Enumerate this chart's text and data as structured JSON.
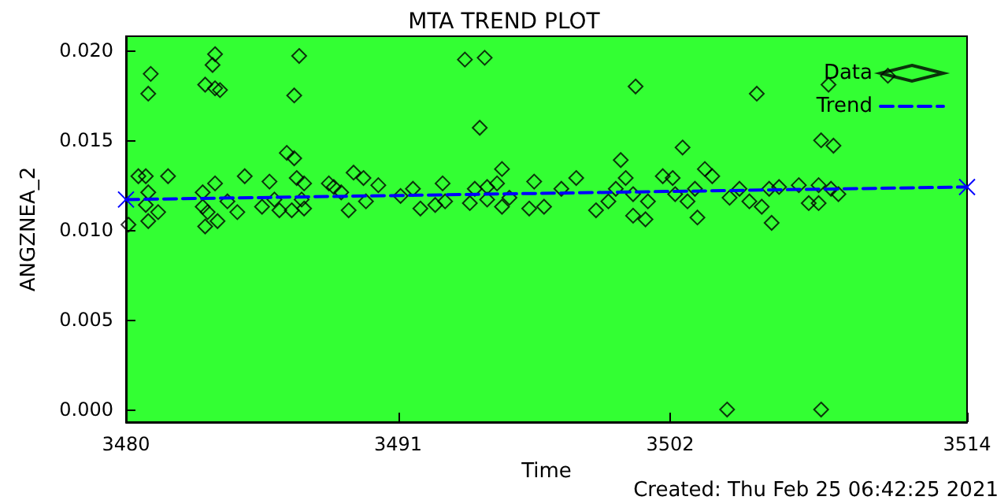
{
  "chart_data": {
    "type": "scatter",
    "title": "MTA TREND PLOT",
    "xlabel": "Time",
    "ylabel": "ANGZNEA_2",
    "annotations": [
      "Created: Thu Feb 25 06:42:25 2021"
    ],
    "xlim": [
      3480,
      3514
    ],
    "xticks": [
      3480,
      3491,
      3502,
      3514
    ],
    "ylim": [
      -0.0007,
      0.0208
    ],
    "yticks": [
      {
        "value": 0,
        "label": "0.000"
      },
      {
        "value": 0.005,
        "label": "0.005"
      },
      {
        "value": 0.01,
        "label": "0.010"
      },
      {
        "value": 0.015,
        "label": "0.015"
      },
      {
        "value": 0.02,
        "label": "0.020"
      }
    ],
    "grid": false,
    "legend": "top right",
    "series": [
      {
        "name": "Data",
        "color": "#000000",
        "marker": "diamond",
        "x": [
          3483.6,
          3483.5,
          3481.0,
          3480.9,
          3483.2,
          3483.6,
          3483.8,
          3487.0,
          3486.8,
          3486.5,
          3486.8,
          3480.5,
          3480.8,
          3481.7,
          3480.9,
          3480.8,
          3481.3,
          3480.9,
          3480.1,
          3483.1,
          3483.6,
          3483.1,
          3483.3,
          3483.2,
          3483.7,
          3484.1,
          3484.5,
          3484.8,
          3485.8,
          3485.5,
          3486.0,
          3486.2,
          3486.7,
          3486.9,
          3487.2,
          3487.1,
          3487.2,
          3488.2,
          3488.4,
          3488.7,
          3489.2,
          3489.6,
          3490.2,
          3489.0,
          3489.7,
          3491.1,
          3493.7,
          3494.5,
          3494.3,
          3500.6,
          3495.2,
          3492.8,
          3491.6,
          3491.9,
          3492.5,
          3492.9,
          3493.9,
          3494.1,
          3494.6,
          3495.0,
          3494.6,
          3495.2,
          3495.5,
          3496.5,
          3496.3,
          3496.9,
          3497.6,
          3498.2,
          3499.0,
          3499.5,
          3500.0,
          3500.2,
          3499.8,
          3500.5,
          3500.5,
          3501.0,
          3501.1,
          3501.7,
          3502.1,
          3502.2,
          3502.5,
          3503.4,
          3503.7,
          3503.0,
          3502.7,
          3503.1,
          3505.5,
          3508.4,
          3510.8,
          3508.1,
          3508.6,
          3504.8,
          3504.4,
          3505.2,
          3505.7,
          3506.0,
          3506.4,
          3506.1,
          3507.2,
          3508.0,
          3507.6,
          3508.0,
          3508.5,
          3508.8,
          3504.3,
          3508.1
        ],
        "values": [
          0.0198,
          0.0192,
          0.0187,
          0.0176,
          0.0181,
          0.0179,
          0.0178,
          0.0197,
          0.0175,
          0.0143,
          0.014,
          0.013,
          0.013,
          0.013,
          0.0121,
          0.0114,
          0.011,
          0.0105,
          0.0103,
          0.0121,
          0.0126,
          0.0113,
          0.011,
          0.0102,
          0.0105,
          0.0116,
          0.011,
          0.013,
          0.0127,
          0.0113,
          0.0117,
          0.0111,
          0.0111,
          0.0129,
          0.0126,
          0.0117,
          0.0112,
          0.0126,
          0.0124,
          0.0121,
          0.0132,
          0.0129,
          0.0125,
          0.0111,
          0.0116,
          0.0119,
          0.0195,
          0.0196,
          0.0157,
          0.018,
          0.0134,
          0.0126,
          0.0123,
          0.0112,
          0.0114,
          0.0116,
          0.0115,
          0.0123,
          0.0124,
          0.0126,
          0.0117,
          0.0113,
          0.0118,
          0.0127,
          0.0112,
          0.0113,
          0.0123,
          0.0129,
          0.0111,
          0.0116,
          0.0139,
          0.0129,
          0.0123,
          0.012,
          0.0108,
          0.0106,
          0.0116,
          0.013,
          0.0129,
          0.012,
          0.0146,
          0.0134,
          0.013,
          0.0123,
          0.0116,
          0.0107,
          0.0176,
          0.0181,
          0.0186,
          0.015,
          0.0147,
          0.0123,
          0.0118,
          0.0116,
          0.0113,
          0.0123,
          0.0124,
          0.0104,
          0.0125,
          0.0125,
          0.0115,
          0.0115,
          0.0123,
          0.012,
          0,
          0
        ]
      },
      {
        "name": "Trend",
        "type": "line",
        "color": "#0000ff",
        "marker": "cross",
        "line_style": "dashed",
        "x": [
          3480,
          3514
        ],
        "values": [
          0.0117,
          0.0124
        ]
      }
    ]
  }
}
